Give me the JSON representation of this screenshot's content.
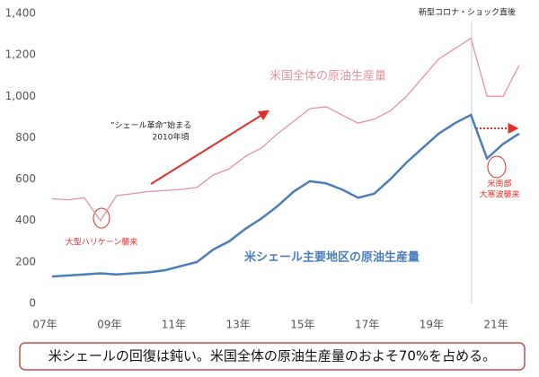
{
  "chart_data": {
    "type": "line",
    "annotations": {
      "covid": "新型コロナ・ショック直後",
      "revolution": [
        "”シェール革命”始まる",
        "2010年頃"
      ],
      "hurricane": "大型ハリケーン襲来",
      "cold": [
        "米南部",
        "大寒波襲来"
      ],
      "summary": "米シェールの回復は鈍い。米国全体の原油生産量のおよそ70%を占める。"
    },
    "categories": [
      "07年",
      null,
      null,
      null,
      "09年",
      null,
      null,
      null,
      "11年",
      null,
      null,
      null,
      "13年",
      null,
      null,
      null,
      "15年",
      null,
      null,
      null,
      "17年",
      null,
      null,
      null,
      "19年",
      null,
      null,
      null,
      "21年",
      null
    ],
    "series": [
      {
        "name": "米国全体の原油生産量",
        "color": "#e3949f",
        "values": [
          505,
          500,
          510,
          400,
          520,
          530,
          540,
          545,
          550,
          560,
          620,
          650,
          710,
          750,
          820,
          880,
          940,
          950,
          910,
          870,
          890,
          930,
          1000,
          1090,
          1180,
          1230,
          1280,
          1000,
          1000,
          1150
        ]
      },
      {
        "name": "米シェール主要地区の原油生産量",
        "color": "#4a7ebb",
        "values": [
          130,
          135,
          140,
          145,
          140,
          145,
          150,
          160,
          180,
          200,
          260,
          300,
          360,
          410,
          470,
          540,
          590,
          580,
          550,
          510,
          530,
          600,
          680,
          750,
          820,
          870,
          910,
          700,
          770,
          820
        ]
      }
    ],
    "ylim": [
      0,
      1400
    ],
    "yticks": [
      0,
      200,
      400,
      600,
      800,
      {
        "value": 1000,
        "label": "1,000"
      },
      {
        "value": 1200,
        "label": "1,200"
      },
      {
        "value": 1400,
        "label": "1,400"
      }
    ],
    "grid": false
  }
}
